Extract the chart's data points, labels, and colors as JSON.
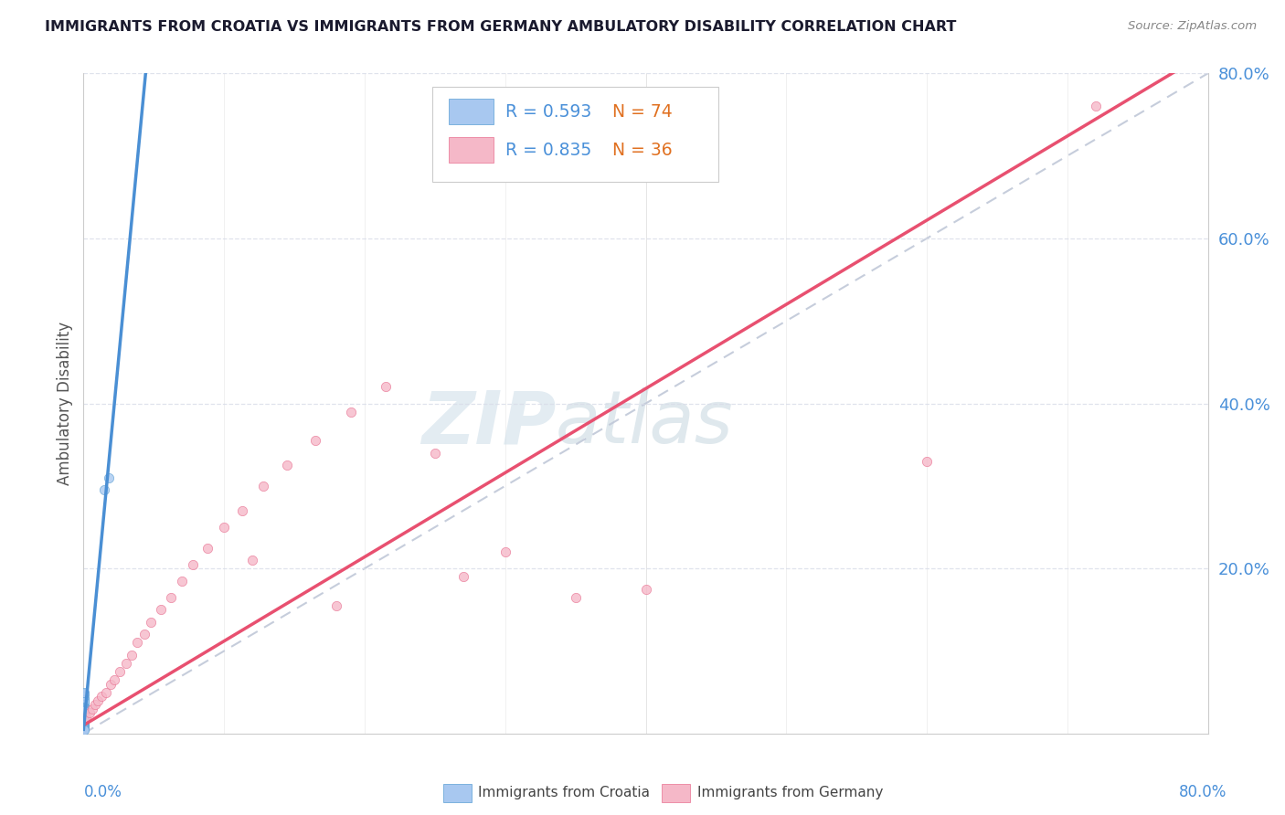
{
  "title": "IMMIGRANTS FROM CROATIA VS IMMIGRANTS FROM GERMANY AMBULATORY DISABILITY CORRELATION CHART",
  "source": "Source: ZipAtlas.com",
  "ylabel": "Ambulatory Disability",
  "legend_labels": [
    "Immigrants from Croatia",
    "Immigrants from Germany"
  ],
  "croatia_R": 0.593,
  "croatia_N": 74,
  "germany_R": 0.835,
  "germany_N": 36,
  "croatia_color": "#a8c8f0",
  "croatia_edge_color": "#5a9fd4",
  "croatia_line_color": "#4a8fd4",
  "germany_color": "#f5b8c8",
  "germany_edge_color": "#e87090",
  "germany_line_color": "#e85070",
  "ref_line_color": "#c0c8d8",
  "watermark_color": "#d5e8f5",
  "axis_label_color": "#4a90d9",
  "n_color": "#e07020",
  "background_color": "#ffffff",
  "croatia_x": [
    0.0002,
    0.0003,
    0.0001,
    0.0004,
    0.0002,
    0.0003,
    0.0001,
    0.0005,
    0.0003,
    0.0002,
    0.0001,
    0.0004,
    0.0002,
    0.0003,
    0.0001,
    0.0002,
    0.0003,
    0.0001,
    0.0004,
    0.0002,
    0.0001,
    0.0003,
    0.0002,
    0.0001,
    0.0005,
    0.0003,
    0.0002,
    0.0001,
    0.0004,
    0.0003,
    0.0002,
    0.0001,
    0.0003,
    0.0002,
    0.0001,
    0.0004,
    0.0003,
    0.0002,
    0.0001,
    0.0005,
    0.0003,
    0.0002,
    0.0001,
    0.0004,
    0.0002,
    0.0001,
    0.0003,
    0.0001,
    0.0002,
    0.0001,
    0.0003,
    0.0002,
    0.0001,
    0.0002,
    0.0003,
    0.0001,
    0.0002,
    0.0001,
    0.0003,
    0.0002,
    0.0001,
    0.0002,
    0.0001,
    0.0003,
    0.0002,
    0.0001,
    0.0002,
    0.0001,
    0.0002,
    0.0001,
    0.0002,
    0.0001,
    0.015,
    0.018
  ],
  "croatia_y": [
    0.03,
    0.035,
    0.028,
    0.04,
    0.032,
    0.038,
    0.025,
    0.045,
    0.033,
    0.029,
    0.027,
    0.038,
    0.031,
    0.036,
    0.024,
    0.03,
    0.034,
    0.022,
    0.042,
    0.028,
    0.021,
    0.035,
    0.029,
    0.023,
    0.048,
    0.036,
    0.027,
    0.02,
    0.04,
    0.034,
    0.028,
    0.019,
    0.033,
    0.026,
    0.018,
    0.041,
    0.032,
    0.025,
    0.017,
    0.05,
    0.035,
    0.026,
    0.016,
    0.039,
    0.027,
    0.015,
    0.032,
    0.014,
    0.025,
    0.013,
    0.031,
    0.024,
    0.012,
    0.023,
    0.03,
    0.011,
    0.022,
    0.01,
    0.029,
    0.021,
    0.009,
    0.02,
    0.008,
    0.028,
    0.019,
    0.007,
    0.018,
    0.006,
    0.017,
    0.005,
    0.016,
    0.004,
    0.295,
    0.31
  ],
  "germany_x": [
    0.002,
    0.004,
    0.006,
    0.008,
    0.01,
    0.013,
    0.016,
    0.019,
    0.022,
    0.026,
    0.03,
    0.034,
    0.038,
    0.043,
    0.048,
    0.055,
    0.062,
    0.07,
    0.078,
    0.088,
    0.1,
    0.113,
    0.128,
    0.145,
    0.165,
    0.19,
    0.215,
    0.25,
    0.3,
    0.35,
    0.27,
    0.18,
    0.12,
    0.4,
    0.6,
    0.72
  ],
  "germany_y": [
    0.02,
    0.025,
    0.03,
    0.035,
    0.04,
    0.045,
    0.05,
    0.06,
    0.065,
    0.075,
    0.085,
    0.095,
    0.11,
    0.12,
    0.135,
    0.15,
    0.165,
    0.185,
    0.205,
    0.225,
    0.25,
    0.27,
    0.3,
    0.325,
    0.355,
    0.39,
    0.42,
    0.34,
    0.22,
    0.165,
    0.19,
    0.155,
    0.21,
    0.175,
    0.33,
    0.76
  ],
  "xmax": 0.8,
  "ymax": 0.8,
  "yticks": [
    0.2,
    0.4,
    0.6,
    0.8
  ],
  "ytick_labels": [
    "20.0%",
    "40.0%",
    "60.0%",
    "80.0%"
  ],
  "grid_color": "#d8dce8",
  "spine_color": "#cccccc"
}
